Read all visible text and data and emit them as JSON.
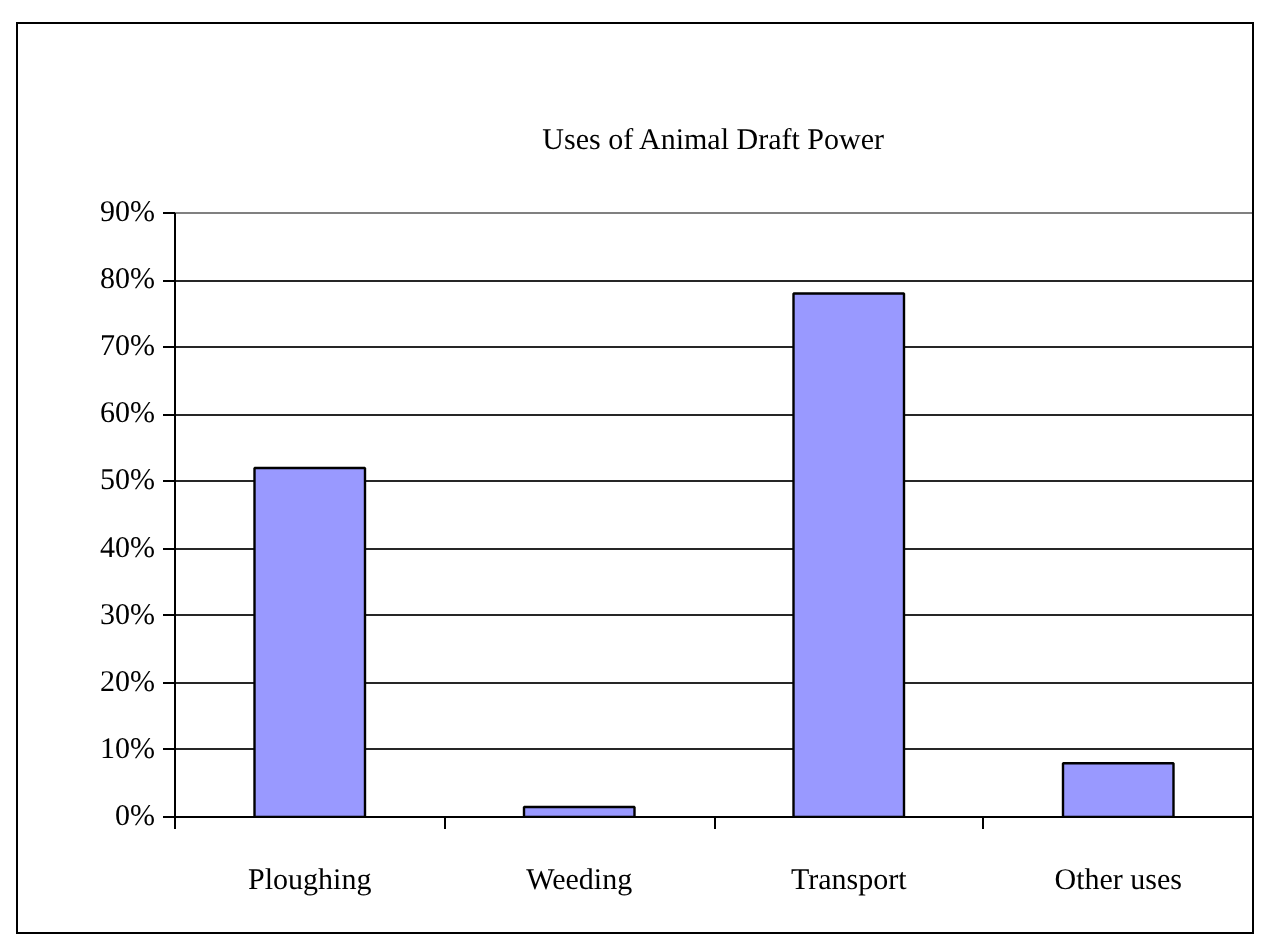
{
  "chart_data": {
    "type": "bar",
    "title": "Uses of Animal Draft Power",
    "categories": [
      "Ploughing",
      "Weeding",
      "Transport",
      "Other uses"
    ],
    "values": [
      52,
      1.5,
      78,
      8
    ],
    "color": "#9999ff",
    "ylim": [
      0,
      90
    ],
    "yticks": [
      {
        "value": 0,
        "label": "0%"
      },
      {
        "value": 10,
        "label": "10%"
      },
      {
        "value": 20,
        "label": "20%"
      },
      {
        "value": 30,
        "label": "30%"
      },
      {
        "value": 40,
        "label": "40%"
      },
      {
        "value": 50,
        "label": "50%"
      },
      {
        "value": 60,
        "label": "60%"
      },
      {
        "value": 70,
        "label": "70%"
      },
      {
        "value": 80,
        "label": "80%"
      },
      {
        "value": 90,
        "label": "90%"
      }
    ],
    "grid": "y"
  }
}
